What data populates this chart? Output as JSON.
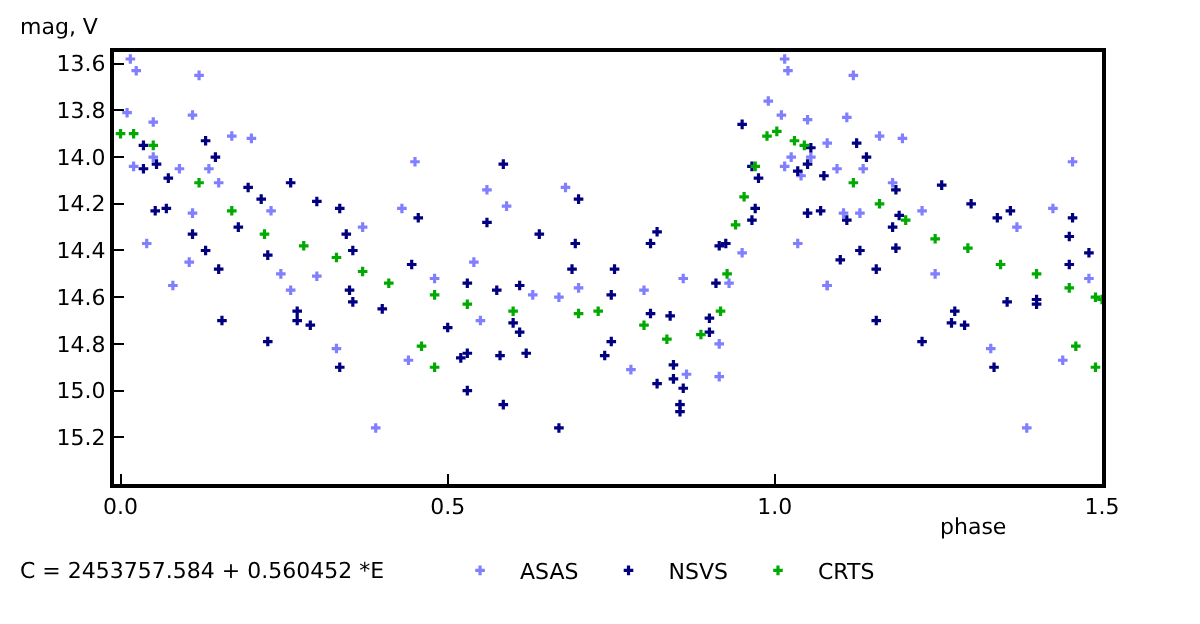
{
  "chart_data": {
    "type": "scatter",
    "ylabel": "mag, V",
    "xlabel": "phase",
    "annotations": [
      "C = 2453757.584 + 0.560452 *E"
    ],
    "xlim": [
      -0.01,
      1.5
    ],
    "xticks": [
      {
        "value": 0,
        "label": "0.0"
      },
      0.5,
      {
        "value": 1,
        "label": "1.0"
      },
      1.5
    ],
    "ylim": [
      15.4,
      13.55
    ],
    "yticks": [
      13.6,
      13.8,
      {
        "value": 14,
        "label": "14.0"
      },
      14.2,
      14.4,
      14.6,
      14.8,
      {
        "value": 15,
        "label": "15.0"
      },
      15.2
    ],
    "legend": "bottom",
    "marker": "cross",
    "series": [
      {
        "name": "ASAS",
        "color": "#8080ff",
        "x": [
          0.015,
          0.024,
          0.12,
          0.01,
          0.11,
          0.05,
          0.17,
          0.2,
          0.02,
          0.05,
          0.135,
          0.09,
          0.15,
          0.23,
          0.11,
          0.08,
          0.04,
          0.105,
          0.245,
          0.37,
          0.45,
          0.56,
          0.59,
          0.68,
          0.54,
          0.48,
          0.3,
          0.43,
          0.39,
          0.33,
          0.44,
          0.26,
          0.63,
          0.55,
          0.67,
          0.7,
          0.86,
          0.8,
          0.78,
          0.865,
          0.915,
          0.915,
          1.08,
          1.385,
          1.33,
          1.44,
          1.48,
          1.245,
          1.015,
          1.02,
          1.12,
          0.99,
          1.01,
          1.11,
          1.05,
          1.16,
          1.195,
          1.08,
          1.025,
          1.055,
          1.095,
          1.135,
          1.015,
          1.04,
          0.95,
          1.035,
          1.105,
          1.13,
          1.18,
          1.225,
          1.37,
          1.455,
          1.425,
          1.08,
          0.93
        ],
        "values": [
          13.58,
          13.63,
          13.65,
          13.81,
          13.82,
          13.85,
          13.91,
          13.92,
          14.04,
          14.0,
          14.05,
          14.05,
          14.11,
          14.23,
          14.24,
          14.55,
          14.37,
          14.45,
          14.5,
          14.3,
          14.02,
          14.14,
          14.21,
          14.13,
          14.45,
          14.52,
          14.51,
          14.22,
          15.16,
          14.82,
          14.87,
          14.57,
          14.59,
          14.7,
          14.6,
          14.56,
          14.52,
          14.57,
          14.91,
          14.93,
          14.94,
          14.8,
          14.55,
          15.16,
          14.82,
          14.87,
          14.52,
          14.5,
          13.58,
          13.63,
          13.65,
          13.76,
          13.82,
          13.83,
          13.84,
          13.91,
          13.92,
          13.94,
          14.0,
          14.0,
          14.05,
          14.05,
          14.04,
          14.08,
          14.41,
          14.37,
          14.24,
          14.24,
          14.11,
          14.23,
          14.3,
          14.02,
          14.22,
          14.55,
          14.54
        ]
      },
      {
        "name": "NSVS",
        "color": "#000080",
        "x": [
          0.035,
          0.035,
          0.055,
          0.073,
          0.053,
          0.07,
          0.13,
          0.145,
          0.195,
          0.18,
          0.11,
          0.13,
          0.15,
          0.215,
          0.225,
          0.26,
          0.3,
          0.335,
          0.355,
          0.345,
          0.455,
          0.445,
          0.56,
          0.585,
          0.64,
          0.695,
          0.7,
          0.69,
          0.61,
          0.155,
          0.225,
          0.27,
          0.29,
          0.27,
          0.335,
          0.35,
          0.355,
          0.4,
          0.5,
          0.52,
          0.53,
          0.53,
          0.585,
          0.58,
          0.62,
          0.61,
          0.67,
          0.6,
          0.575,
          0.53,
          0.74,
          0.75,
          0.81,
          0.84,
          0.82,
          0.845,
          0.855,
          0.855,
          0.845,
          0.86,
          0.9,
          0.9,
          0.91,
          0.75,
          1.155,
          1.225,
          1.27,
          1.29,
          1.275,
          1.335,
          1.355,
          1.4,
          1.4,
          0.95,
          0.965,
          0.975,
          1.055,
          1.05,
          1.035,
          1.05,
          1.07,
          1.075,
          1.125,
          1.14,
          1.185,
          1.18,
          1.11,
          1.19,
          1.255,
          1.3,
          1.34,
          1.36,
          1.455,
          1.45,
          1.45,
          1.48,
          1.185,
          1.155,
          1.13,
          1.1,
          0.97,
          0.965,
          0.82,
          0.81,
          0.915,
          0.925,
          0.755
        ],
        "values": [
          13.95,
          14.05,
          14.03,
          14.09,
          14.23,
          14.22,
          13.93,
          14.0,
          14.13,
          14.3,
          14.33,
          14.4,
          14.48,
          14.18,
          14.42,
          14.11,
          14.19,
          14.22,
          14.4,
          14.33,
          14.26,
          14.46,
          14.28,
          14.03,
          14.33,
          14.37,
          14.18,
          14.48,
          14.55,
          14.7,
          14.79,
          14.7,
          14.72,
          14.66,
          14.9,
          14.57,
          14.62,
          14.65,
          14.73,
          14.86,
          14.84,
          15.0,
          15.06,
          14.85,
          14.84,
          14.75,
          15.16,
          14.71,
          14.57,
          14.54,
          14.85,
          14.79,
          14.67,
          14.68,
          14.97,
          14.95,
          15.09,
          15.06,
          14.89,
          14.99,
          14.69,
          14.75,
          14.54,
          14.59,
          14.7,
          14.79,
          14.71,
          14.72,
          14.66,
          14.9,
          14.62,
          14.63,
          14.61,
          13.86,
          14.04,
          14.09,
          13.96,
          14.03,
          14.06,
          14.24,
          14.23,
          14.08,
          13.94,
          14.0,
          14.14,
          14.3,
          14.27,
          14.25,
          14.12,
          14.2,
          14.26,
          14.23,
          14.26,
          14.34,
          14.46,
          14.41,
          14.39,
          14.48,
          14.4,
          14.44,
          14.22,
          14.27,
          14.32,
          14.37,
          14.38,
          14.37,
          14.48
        ]
      },
      {
        "name": "CRTS",
        "color": "#00aa00",
        "x": [
          0.0,
          0.02,
          0.05,
          0.12,
          0.17,
          0.22,
          0.28,
          0.33,
          0.37,
          0.41,
          0.48,
          0.53,
          0.6,
          0.7,
          0.73,
          0.8,
          0.835,
          0.887,
          0.917,
          0.927,
          0.94,
          0.953,
          0.97,
          0.988,
          1.003,
          1.03,
          1.045,
          1.12,
          1.16,
          1.2,
          1.245,
          1.295,
          1.345,
          1.4,
          1.45,
          1.49,
          1.5,
          0.46,
          0.48,
          1.46,
          1.49
        ],
        "values": [
          13.9,
          13.9,
          13.95,
          14.11,
          14.23,
          14.33,
          14.38,
          14.43,
          14.49,
          14.54,
          14.59,
          14.63,
          14.66,
          14.67,
          14.66,
          14.72,
          14.78,
          14.76,
          14.66,
          14.5,
          14.29,
          14.17,
          14.04,
          13.91,
          13.89,
          13.93,
          13.95,
          14.11,
          14.2,
          14.27,
          14.35,
          14.39,
          14.46,
          14.5,
          14.56,
          14.6,
          14.61,
          14.81,
          14.9,
          14.81,
          14.9
        ]
      }
    ]
  }
}
